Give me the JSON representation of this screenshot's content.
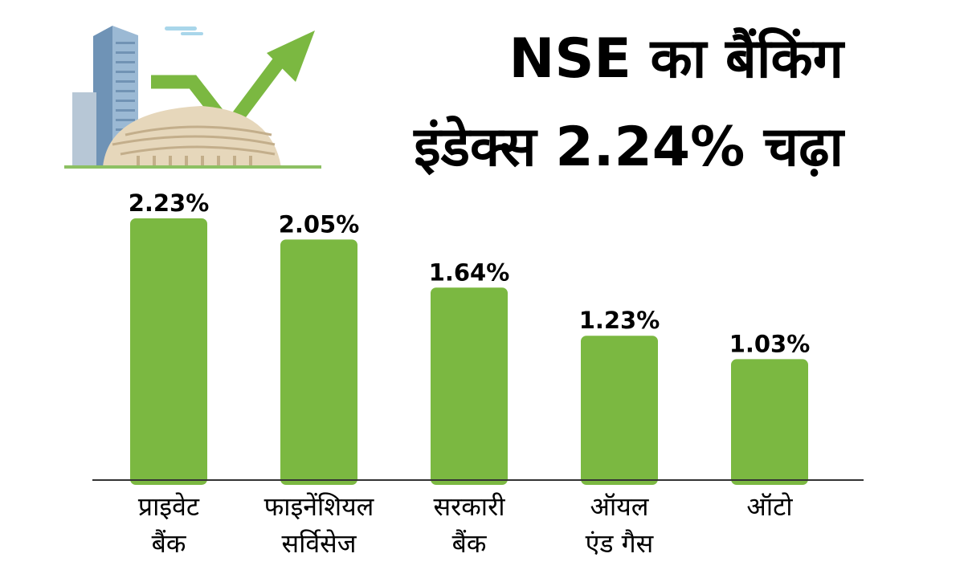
{
  "title": {
    "line1": "NSE का बैंकिंग",
    "line2": "इंडेक्स 2.24% चढ़ा"
  },
  "colors": {
    "bar": "#7bb841",
    "arrow": "#7bb841",
    "axis": "#333333",
    "text": "#000000"
  },
  "illustration": {
    "icon": "stock-exchange-building-with-rising-arrow-icon"
  },
  "chart_data": {
    "type": "bar",
    "categories": [
      [
        "प्राइवेट",
        "बैंक"
      ],
      [
        "फाइनेंशियल",
        "सर्विसेज"
      ],
      [
        "सरकारी",
        "बैंक"
      ],
      [
        "ऑयल",
        "एंड गैस"
      ],
      [
        "ऑटो"
      ]
    ],
    "values": [
      2.23,
      2.05,
      1.64,
      1.23,
      1.03
    ],
    "data_labels": [
      "2.23%",
      "2.05%",
      "1.64%",
      "1.23%",
      "1.03%"
    ],
    "ylim": [
      0,
      2.7
    ],
    "grid": false,
    "legend": "none"
  }
}
